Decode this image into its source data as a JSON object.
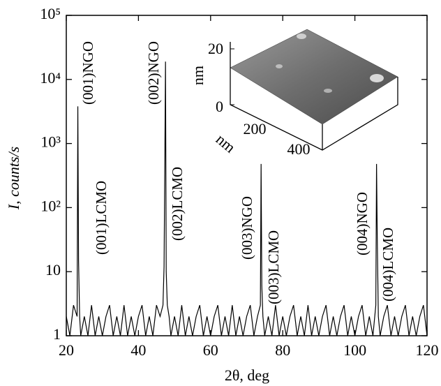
{
  "chart_data": {
    "type": "line",
    "xlabel": "2θ, deg",
    "ylabel": "I, counts/s",
    "log_y": true,
    "color": "#000000",
    "x": [
      20,
      21,
      22,
      23,
      23.2,
      23.4,
      23.7,
      24,
      25,
      26,
      27,
      28,
      29,
      30,
      31,
      32,
      33,
      34,
      35,
      36,
      37,
      38,
      39,
      40,
      41,
      42,
      43,
      44,
      45,
      46,
      46.8,
      47.1,
      47.3,
      47.5,
      47.7,
      48,
      48.5,
      49,
      50,
      51,
      52,
      53,
      54,
      55,
      56,
      57,
      58,
      59,
      60,
      61,
      62,
      63,
      64,
      65,
      66,
      67,
      68,
      69,
      70,
      71,
      72,
      73,
      73.8,
      74.0,
      74.2,
      74.5,
      75,
      76,
      77,
      78,
      79,
      80,
      81,
      82,
      83,
      84,
      85,
      86,
      87,
      88,
      89,
      90,
      91,
      92,
      93,
      94,
      95,
      96,
      97,
      98,
      99,
      100,
      101,
      102,
      103,
      104,
      105,
      105.8,
      106.0,
      106.2,
      106.5,
      107,
      108,
      109,
      110,
      111,
      112,
      113,
      114,
      115,
      116,
      117,
      118,
      119,
      120
    ],
    "values": [
      2,
      1,
      3,
      2,
      3800,
      15,
      2,
      1,
      2,
      1,
      3,
      1,
      2,
      1,
      2,
      3,
      1,
      2,
      1,
      3,
      1,
      2,
      1,
      2,
      3,
      1,
      2,
      1,
      3,
      2,
      3,
      12,
      400,
      19000,
      10,
      3,
      2,
      1,
      2,
      1,
      3,
      1,
      2,
      1,
      2,
      3,
      1,
      2,
      1,
      2,
      3,
      1,
      2,
      1,
      3,
      1,
      2,
      1,
      2,
      3,
      1,
      2,
      3,
      480,
      6,
      2,
      1,
      2,
      1,
      3,
      1,
      2,
      1,
      2,
      3,
      1,
      2,
      1,
      3,
      1,
      2,
      1,
      2,
      3,
      1,
      2,
      1,
      2,
      3,
      1,
      2,
      1,
      2,
      3,
      1,
      2,
      1,
      3,
      480,
      35,
      2,
      1,
      2,
      3,
      1,
      2,
      1,
      2,
      3,
      1,
      2,
      1,
      2,
      3,
      1
    ],
    "xlim": [
      20,
      120
    ],
    "xticks": [
      20,
      40,
      60,
      80,
      100,
      120
    ],
    "ylim": [
      1,
      100000
    ],
    "yticks": [
      1,
      10,
      {
        "value": 100,
        "label": "10²"
      },
      {
        "value": 1000,
        "label": "10³"
      },
      {
        "value": 10000,
        "label": "10⁴"
      },
      {
        "value": 100000,
        "label": "10⁵"
      }
    ],
    "annotations": [
      "(001)NGO",
      "(001)LCMO",
      "(002)NGO",
      "(002)LCMO",
      "(003)NGO",
      "(003)LCMO",
      "(004)NGO",
      "(004)LCMO"
    ],
    "inset": {
      "z_ticks": [
        0,
        20
      ],
      "z_label": "nm",
      "xy_ticks": [
        200,
        400
      ],
      "xy_label": "nm"
    }
  }
}
